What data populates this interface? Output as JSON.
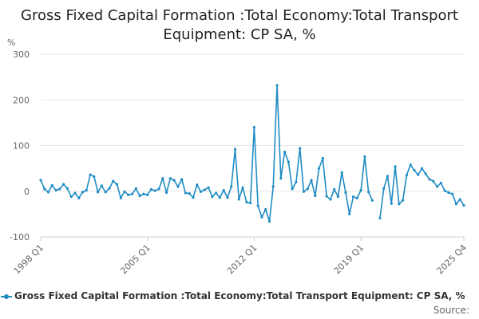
{
  "chart_data": {
    "type": "line",
    "title": "Gross Fixed Capital Formation :Total Economy:Total Transport Equipment: CP SA, %",
    "ylabel": "%",
    "xlabel": "",
    "ylim": [
      -100,
      300
    ],
    "yticks": [
      -100,
      0,
      100,
      200,
      300
    ],
    "x_tick_labels": [
      "1998 Q1",
      "2005 Q1",
      "2012 Q1",
      "2019 Q1",
      "2025 Q4"
    ],
    "x_tick_index": [
      0,
      28,
      56,
      84,
      111
    ],
    "grid": true,
    "series": [
      {
        "name": "Gross Fixed Capital Formation :Total Economy:Total Transport Equipment: CP SA, %",
        "color": "#1f8cc4",
        "values": [
          24,
          5,
          -2,
          13,
          2,
          5,
          15,
          6,
          -12,
          -4,
          -15,
          -2,
          2,
          36,
          32,
          -2,
          12,
          -2,
          6,
          22,
          15,
          -15,
          -1,
          -8,
          -6,
          6,
          -10,
          -6,
          -8,
          4,
          1,
          5,
          28,
          -3,
          28,
          24,
          10,
          26,
          -4,
          -5,
          -14,
          14,
          -1,
          3,
          8,
          -12,
          -4,
          -14,
          2,
          -14,
          10,
          92,
          -18,
          8,
          -24,
          -26,
          140,
          -32,
          -57,
          -40,
          -66,
          10,
          232,
          28,
          86,
          64,
          5,
          20,
          94,
          -1,
          5,
          24,
          -10,
          50,
          72,
          -11,
          -18,
          4,
          -12,
          41,
          -3,
          -50,
          -12,
          -15,
          2,
          76,
          -2,
          -20,
          null,
          -59,
          6,
          33,
          -27,
          54,
          -28,
          -20,
          35,
          58,
          46,
          36,
          50,
          38,
          26,
          22,
          10,
          18,
          1,
          -3,
          -6,
          -28,
          -18,
          -31
        ]
      }
    ]
  },
  "legend": {
    "label": "Gross Fixed Capital Formation :Total Economy:Total Transport Equipment: CP SA, %"
  },
  "source": {
    "label": "Source:"
  }
}
